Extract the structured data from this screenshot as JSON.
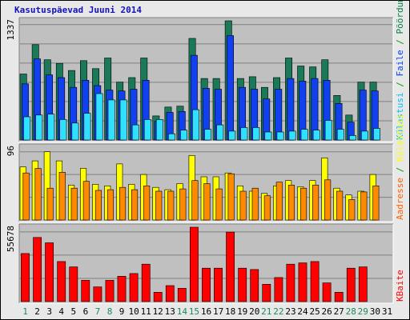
{
  "chart_data": {
    "type": "bar",
    "title": "Kasutuspäevad Juuni 2014",
    "categories": [
      "1",
      "2",
      "3",
      "4",
      "5",
      "6",
      "7",
      "8",
      "9",
      "10",
      "11",
      "12",
      "13",
      "14",
      "15",
      "16",
      "17",
      "18",
      "19",
      "20",
      "21",
      "22",
      "23",
      "24",
      "25",
      "26",
      "27",
      "28",
      "29",
      "30",
      "31"
    ],
    "weekend_days": [
      "1",
      "7",
      "8",
      "14",
      "15",
      "21",
      "22",
      "28",
      "29"
    ],
    "panels": [
      {
        "name": "top",
        "ymax_label": "1337",
        "ymax": 1337,
        "legend": [
          {
            "text": "Külastusi",
            "color": "#00c0ff"
          },
          {
            "text": " / ",
            "color": "#00a000"
          },
          {
            "text": "Faile",
            "color": "#0040ff"
          },
          {
            "text": " / ",
            "color": "#00a000"
          },
          {
            "text": "Pöördumisi",
            "color": "#008040"
          }
        ],
        "series": [
          {
            "name": "Pöördumisi",
            "color": "#1a7a58",
            "values": [
              740,
              1070,
              900,
              860,
              780,
              890,
              800,
              920,
              650,
              700,
              920,
              270,
              370,
              380,
              1140,
              690,
              690,
              1337,
              690,
              710,
              590,
              700,
              920,
              830,
              820,
              900,
              500,
              280,
              650,
              650,
              0
            ]
          },
          {
            "name": "Faile",
            "color": "#1040f0",
            "values": [
              630,
              910,
              730,
              700,
              590,
              670,
              610,
              560,
              550,
              570,
              670,
              210,
              310,
              320,
              950,
              580,
              570,
              1170,
              590,
              570,
              460,
              570,
              690,
              660,
              690,
              670,
              410,
              200,
              560,
              550,
              0
            ]
          },
          {
            "name": "Külastusi",
            "color": "#30e0ff",
            "values": [
              260,
              280,
              290,
              230,
              190,
              300,
              520,
              450,
              450,
              170,
              230,
              230,
              70,
              110,
              340,
              120,
              170,
              100,
              140,
              140,
              90,
              90,
              100,
              120,
              110,
              220,
              120,
              50,
              100,
              130,
              0
            ]
          }
        ]
      },
      {
        "name": "middle",
        "ymax_label": "96",
        "ymax": 96,
        "legend": [
          {
            "text": "Aadresse",
            "color": "#ff6000"
          },
          {
            "text": " / ",
            "color": "#00a000"
          },
          {
            "text": "Külastusi",
            "color": "#ffff00"
          }
        ],
        "series": [
          {
            "name": "Külastusi",
            "color": "#ffff00",
            "values": [
              70,
              78,
              90,
              78,
              46,
              68,
              47,
              45,
              74,
              47,
              60,
              43,
              40,
              48,
              85,
              57,
              57,
              62,
              45,
              38,
              35,
              45,
              52,
              44,
              52,
              82,
              42,
              33,
              38,
              60,
              0
            ]
          },
          {
            "name": "Aadresse",
            "color": "#ff8a00",
            "values": [
              62,
              68,
              42,
              63,
              42,
              51,
              39,
              40,
              43,
              40,
              45,
              38,
              38,
              41,
              52,
              48,
              41,
              61,
              38,
              42,
              32,
              50,
              46,
              42,
              46,
              53,
              38,
              27,
              37,
              45,
              0
            ]
          }
        ]
      },
      {
        "name": "bottom",
        "ymax_label": "55678",
        "ymax": 55678,
        "legend": [
          {
            "text": "KBaite",
            "color": "#ff0000"
          }
        ],
        "series": [
          {
            "name": "KBaite",
            "color": "#ff0000",
            "values": [
              36000,
              48000,
              44000,
              30000,
              26000,
              16000,
              11000,
              16000,
              19000,
              21000,
              28000,
              7000,
              12000,
              10000,
              55678,
              25000,
              25000,
              52000,
              25000,
              24000,
              13000,
              18000,
              28000,
              29000,
              30000,
              14000,
              7000,
              25000,
              26000,
              0,
              0
            ]
          }
        ]
      }
    ]
  }
}
